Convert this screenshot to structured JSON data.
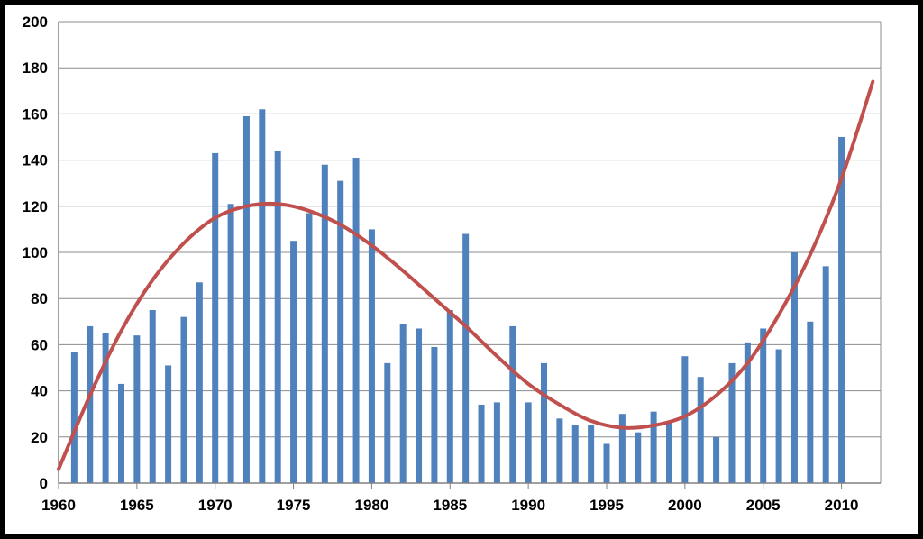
{
  "chart_data": {
    "type": "bar",
    "title": "",
    "xlabel": "",
    "ylabel": "",
    "xlim": [
      1960,
      2012.5
    ],
    "ylim": [
      0,
      200
    ],
    "ytick_step": 20,
    "xticks": [
      1960,
      1965,
      1970,
      1975,
      1980,
      1985,
      1990,
      1995,
      2000,
      2005,
      2010
    ],
    "yticks": [
      0,
      20,
      40,
      60,
      80,
      100,
      120,
      140,
      160,
      180,
      200
    ],
    "grid": true,
    "legend": "none",
    "bar_color": "#4f81bd",
    "trend_color": "#c0504d",
    "categories": [
      1961,
      1962,
      1963,
      1964,
      1965,
      1966,
      1967,
      1968,
      1969,
      1970,
      1971,
      1972,
      1973,
      1974,
      1975,
      1976,
      1977,
      1978,
      1979,
      1980,
      1981,
      1982,
      1983,
      1984,
      1985,
      1986,
      1987,
      1988,
      1989,
      1990,
      1991,
      1992,
      1993,
      1994,
      1995,
      1996,
      1997,
      1998,
      1999,
      2000,
      2001,
      2002,
      2003,
      2004,
      2005,
      2006,
      2007,
      2008,
      2009,
      2010
    ],
    "values": [
      57,
      68,
      65,
      43,
      64,
      75,
      51,
      72,
      87,
      143,
      121,
      159,
      162,
      144,
      105,
      117,
      138,
      131,
      141,
      110,
      52,
      69,
      67,
      59,
      75,
      108,
      34,
      35,
      68,
      35,
      52,
      28,
      25,
      25,
      17,
      30,
      22,
      31,
      26,
      55,
      46,
      20,
      52,
      61,
      67,
      58,
      100,
      70,
      94,
      150
    ],
    "trendline": {
      "type": "polynomial",
      "x": [
        1960,
        1962,
        1964,
        1966,
        1968,
        1970,
        1972,
        1974,
        1976,
        1978,
        1980,
        1982,
        1984,
        1986,
        1988,
        1990,
        1992,
        1994,
        1996,
        1998,
        2000,
        2002,
        2004,
        2006,
        2008,
        2010,
        2012
      ],
      "y": [
        6,
        38,
        66,
        88,
        104,
        115,
        120,
        121,
        118,
        112,
        103,
        92,
        80,
        68,
        55,
        43,
        34,
        27,
        24,
        25,
        29,
        38,
        52,
        73,
        99,
        132,
        174
      ]
    }
  }
}
